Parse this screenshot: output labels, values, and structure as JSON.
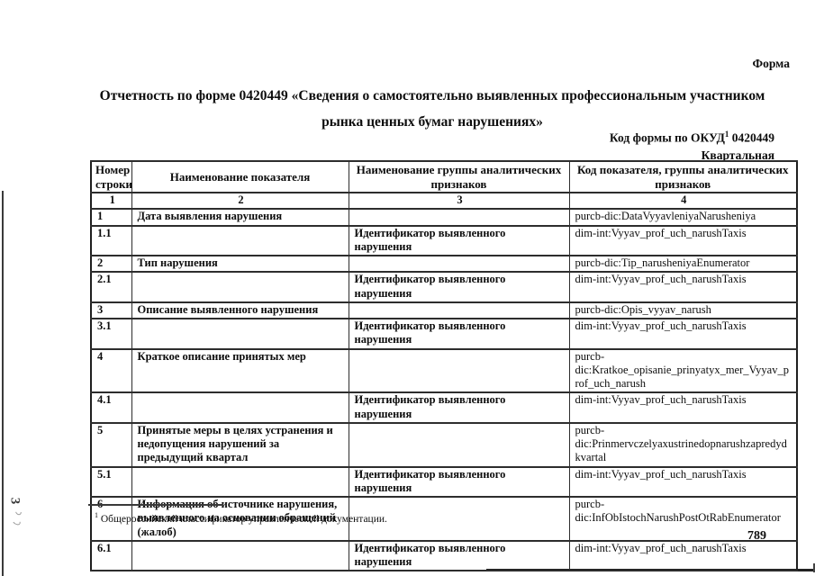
{
  "page": {
    "form_label": "Форма",
    "title_line1": "Отчетность по форме 0420449 «Сведения о самостоятельно выявленных профессиональным участником",
    "title_line2": "рынка ценных бумаг нарушениях»",
    "okud_label": "Код формы по ОКУД",
    "okud_footnote_marker": "1",
    "okud_code": "0420449",
    "periodicity": "Квартальная",
    "footnote_marker": "1",
    "footnote_text": "Общероссийский классификатор управленческой документации.",
    "page_number": "789",
    "margin_mark": "3"
  },
  "table": {
    "headers": [
      "Номер строки",
      "Наименование показателя",
      "Наименование группы аналитических признаков",
      "Код показателя, группы аналитических признаков"
    ],
    "index_row": [
      "1",
      "2",
      "3",
      "4"
    ],
    "rows": [
      {
        "num": "1",
        "name": "Дата выявления нарушения",
        "group": "",
        "code": "purcb-dic:DataVyyavleniyaNarusheniya"
      },
      {
        "num": "1.1",
        "name": "",
        "group": "Идентификатор выявленного нарушения",
        "code": "dim-int:Vyyav_prof_uch_narushTaxis"
      },
      {
        "num": "2",
        "name": "Тип нарушения",
        "group": "",
        "code": "purcb-dic:Tip_narusheniyaEnumerator"
      },
      {
        "num": "2.1",
        "name": "",
        "group": "Идентификатор выявленного нарушения",
        "code": "dim-int:Vyyav_prof_uch_narushTaxis"
      },
      {
        "num": "3",
        "name": "Описание выявленного нарушения",
        "group": "",
        "code": "purcb-dic:Opis_vyyav_narush"
      },
      {
        "num": "3.1",
        "name": "",
        "group": "Идентификатор выявленного нарушения",
        "code": "dim-int:Vyyav_prof_uch_narushTaxis"
      },
      {
        "num": "4",
        "name": "Краткое описание принятых мер",
        "group": "",
        "code": "purcb-dic:Kratkoe_opisanie_prinyatyx_mer_Vyyav_prof_uch_narush"
      },
      {
        "num": "4.1",
        "name": "",
        "group": "Идентификатор выявленного нарушения",
        "code": "dim-int:Vyyav_prof_uch_narushTaxis"
      },
      {
        "num": "5",
        "name": "Принятые меры в целях устранения и недопущения нарушений за предыдущий квартал",
        "group": "",
        "code": "purcb-dic:Prinmervczelyaxustrinedopnarushzapredydkvartal"
      },
      {
        "num": "5.1",
        "name": "",
        "group": "Идентификатор выявленного нарушения",
        "code": "dim-int:Vyyav_prof_uch_narushTaxis"
      },
      {
        "num": "6",
        "name": "Информация об источнике нарушения, выявленного на основании обращений (жалоб)",
        "group": "",
        "code": "purcb-dic:InfObIstochNarushPostOtRabEnumerator"
      },
      {
        "num": "6.1",
        "name": "",
        "group": "Идентификатор выявленного нарушения",
        "code": "dim-int:Vyyav_prof_uch_narushTaxis"
      }
    ]
  }
}
